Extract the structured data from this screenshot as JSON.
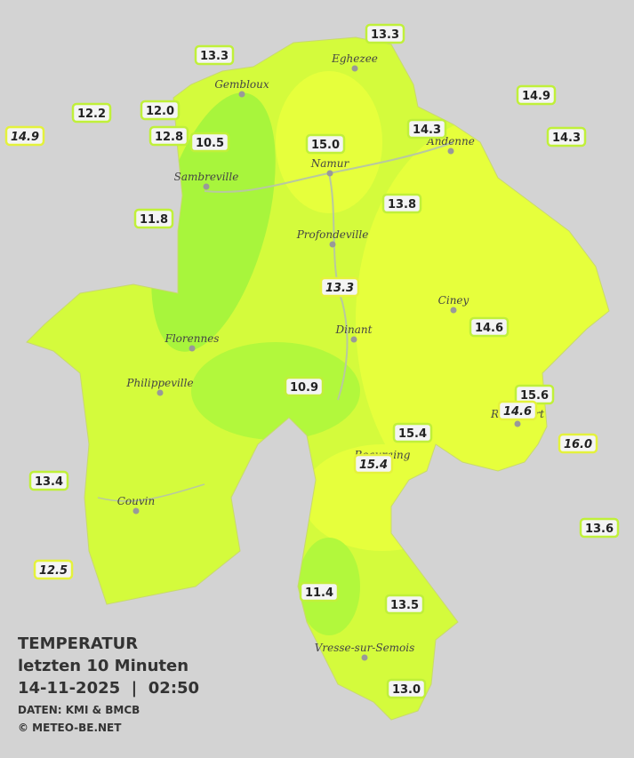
{
  "stations": [
    {
      "label": "13.3"
    },
    {
      "label": "13.3"
    },
    {
      "label": "14.9"
    },
    {
      "label": "12.2"
    },
    {
      "label": "12.0"
    },
    {
      "label": "14.9",
      "italic": true
    },
    {
      "label": "12.8"
    },
    {
      "label": "10.5"
    },
    {
      "label": "15.0"
    },
    {
      "label": "14.3"
    },
    {
      "label": "14.3"
    },
    {
      "label": "13.8"
    },
    {
      "label": "11.8"
    },
    {
      "label": "13.3",
      "italic": true
    },
    {
      "label": "14.6"
    },
    {
      "label": "10.9"
    },
    {
      "label": "15.6"
    },
    {
      "label": "14.6",
      "italic": true
    },
    {
      "label": "15.4"
    },
    {
      "label": "16.0",
      "italic": true
    },
    {
      "label": "15.4",
      "italic": true
    },
    {
      "label": "13.4"
    },
    {
      "label": "13.6"
    },
    {
      "label": "12.5",
      "italic": true
    },
    {
      "label": "11.4"
    },
    {
      "label": "13.5"
    },
    {
      "label": "13.0"
    }
  ],
  "cities": [
    "Eghezee",
    "Gembloux",
    "Andenne",
    "Namur",
    "Sambreville",
    "Profondeville",
    "Ciney",
    "Dinant",
    "Florennes",
    "Philippeville",
    "Rochefort",
    "Beauraing",
    "Couvin",
    "Vresse-sur-Semois"
  ],
  "legend": {
    "title": "TEMPERATUR",
    "subtitle": "letzten 10 Minuten",
    "datetime": "14-11-2025  |  02:50",
    "source": "DATEN: KMI & BMCB",
    "copyright": "© METEO-BE.NET"
  }
}
